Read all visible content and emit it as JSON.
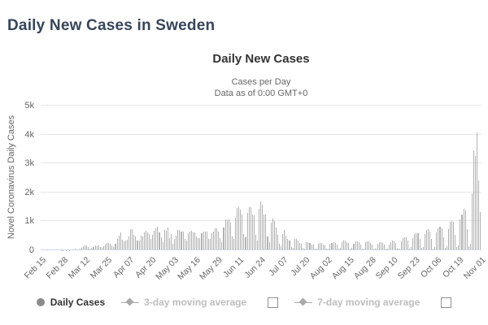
{
  "page": {
    "title": "Daily New Cases in Sweden"
  },
  "chart": {
    "title": "Daily New Cases",
    "subtitle_line1": "Cases per Day",
    "subtitle_line2": "Data as of 0:00 GMT+0",
    "y_axis_title": "Novel Coronavirus Daily Cases"
  },
  "legend": {
    "items": [
      {
        "label": "Daily Cases",
        "marker": "circle-marker-icon",
        "enabled": true,
        "checkbox": false
      },
      {
        "label": "3-day moving average",
        "marker": "diamond-line-marker-icon",
        "enabled": false,
        "checkbox": true
      },
      {
        "label": "7-day moving average",
        "marker": "diamond-line-marker-icon",
        "enabled": false,
        "checkbox": true
      }
    ]
  },
  "colors": {
    "bar": "#b2b2b2",
    "page_title": "#36455a",
    "gridline": "#e6e6e6",
    "axis_line": "#ccd6eb",
    "axis_text": "#666666",
    "disabled_legend_text": "#bdbdbd"
  },
  "chart_data": {
    "type": "bar",
    "title": "Daily New Cases",
    "subtitle": "Cases per Day — Data as of 0:00 GMT+0",
    "series_name": "Daily Cases",
    "xlabel": "",
    "ylabel": "Novel Coronavirus Daily Cases",
    "ylim": [
      0,
      5000
    ],
    "y_ticks": [
      "0",
      "1k",
      "2k",
      "3k",
      "4k",
      "5k"
    ],
    "grid": true,
    "legend_position": "bottom",
    "x_start_date": "Feb 15",
    "x_end_date": "Nov 01",
    "x_tick_labels": [
      "Feb 15",
      "Feb 28",
      "Mar 12",
      "Mar 25",
      "Apr 07",
      "Apr 20",
      "May 03",
      "May 16",
      "May 29",
      "Jun 11",
      "Jun 24",
      "Jul 07",
      "Jul 20",
      "Aug 02",
      "Aug 15",
      "Aug 28",
      "Sep 10",
      "Sep 23",
      "Oct 06",
      "Oct 19",
      "Nov 01"
    ],
    "x_tick_day_indices": [
      0,
      13,
      26,
      39,
      52,
      65,
      78,
      91,
      104,
      117,
      130,
      143,
      156,
      169,
      182,
      195,
      208,
      221,
      234,
      247,
      260
    ],
    "values": [
      0,
      0,
      0,
      0,
      0,
      0,
      0,
      0,
      0,
      0,
      0,
      1,
      5,
      4,
      2,
      5,
      2,
      9,
      22,
      42,
      43,
      24,
      42,
      45,
      97,
      143,
      160,
      155,
      112,
      69,
      90,
      119,
      156,
      134,
      155,
      103,
      76,
      131,
      204,
      264,
      240,
      239,
      169,
      106,
      213,
      407,
      512,
      612,
      365,
      312,
      344,
      376,
      487,
      726,
      722,
      544,
      466,
      332,
      344,
      497,
      482,
      613,
      676,
      606,
      563,
      392,
      545,
      682,
      751,
      812,
      610,
      463,
      286,
      695,
      681,
      790,
      428,
      562,
      235,
      404,
      495,
      702,
      705,
      642,
      656,
      401,
      348,
      602,
      637,
      673,
      625,
      611,
      466,
      422,
      422,
      584,
      649,
      637,
      656,
      383,
      384,
      597,
      648,
      749,
      749,
      637,
      429,
      272,
      774,
      1080,
      1044,
      1056,
      948,
      487,
      403,
      1110,
      1474,
      1476,
      1396,
      1247,
      567,
      459,
      1282,
      1481,
      1487,
      1247,
      1197,
      538,
      345,
      1423,
      1698,
      1566,
      1226,
      1236,
      489,
      281,
      947,
      1109,
      1006,
      773,
      547,
      219,
      144,
      567,
      707,
      514,
      398,
      342,
      119,
      85,
      398,
      383,
      346,
      259,
      235,
      91,
      61,
      281,
      274,
      265,
      209,
      193,
      63,
      61,
      234,
      259,
      252,
      211,
      163,
      57,
      58,
      225,
      262,
      272,
      256,
      205,
      58,
      77,
      274,
      328,
      339,
      290,
      248,
      57,
      72,
      227,
      312,
      302,
      277,
      191,
      56,
      56,
      280,
      300,
      304,
      253,
      205,
      52,
      65,
      216,
      292,
      288,
      250,
      207,
      48,
      60,
      206,
      280,
      328,
      313,
      247,
      48,
      68,
      314,
      426,
      438,
      439,
      331,
      63,
      104,
      434,
      551,
      591,
      584,
      393,
      83,
      119,
      554,
      702,
      721,
      652,
      400,
      69,
      117,
      618,
      757,
      809,
      760,
      460,
      96,
      135,
      729,
      975,
      1010,
      970,
      548,
      108,
      179,
      1064,
      1233,
      1446,
      1380,
      727,
      137,
      232,
      1980,
      3443,
      3254,
      4062,
      2412,
      1334
    ]
  }
}
